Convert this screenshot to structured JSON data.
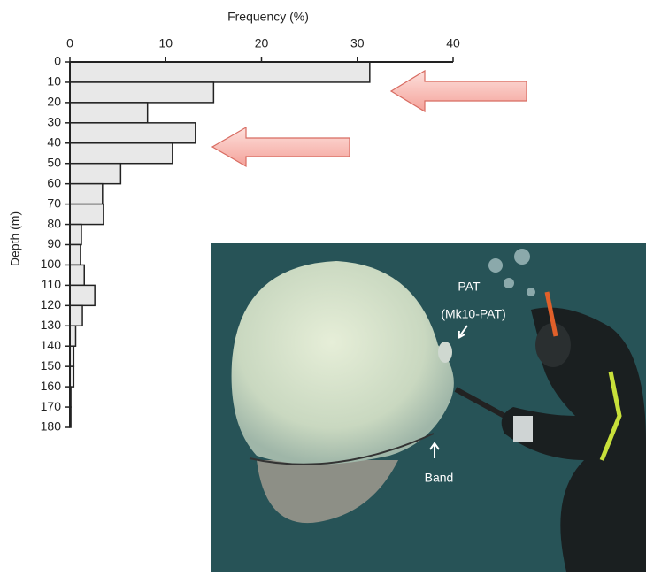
{
  "chart_data": {
    "type": "histogram",
    "orientation": "horizontal",
    "x_label": "Frequency (%)",
    "y_label": "Depth (m)",
    "bins": [
      0,
      10,
      20,
      30,
      40,
      50,
      60,
      70,
      80,
      90,
      100,
      110,
      120,
      130,
      140,
      150,
      160,
      170,
      180
    ],
    "values": [
      31.3,
      15.0,
      8.1,
      13.1,
      10.7,
      5.3,
      3.4,
      3.5,
      1.2,
      1.1,
      1.5,
      2.6,
      1.3,
      0.6,
      0.4,
      0.4,
      0.1,
      0.1
    ],
    "color": "#e8e8e8",
    "xlim": [
      0,
      40
    ],
    "xticks": [
      0,
      10,
      20,
      30,
      40
    ],
    "ylim": [
      0,
      180
    ],
    "y_inverted": true,
    "yticks": [
      0,
      10,
      20,
      30,
      40,
      50,
      60,
      70,
      80,
      90,
      100,
      110,
      120,
      130,
      140,
      150,
      160,
      170,
      180
    ]
  },
  "photo": {
    "labels": [
      "PAT",
      "(Mk10-PAT)",
      "Band"
    ]
  }
}
